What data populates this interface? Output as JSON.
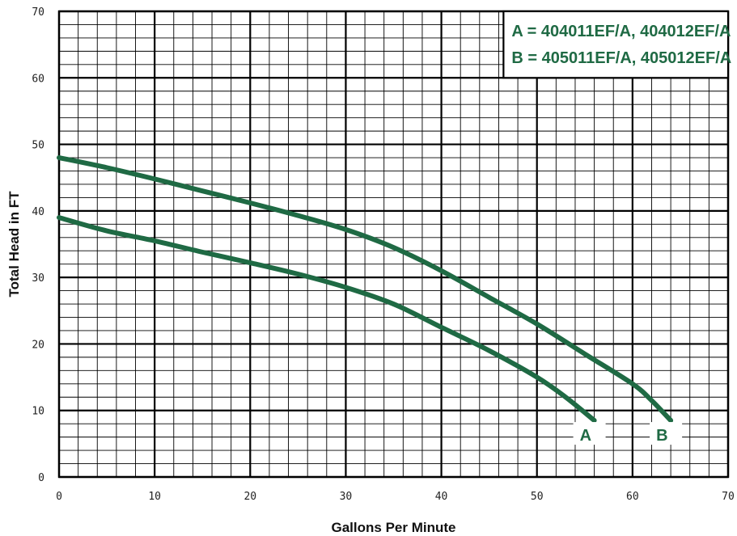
{
  "chart_data": {
    "type": "line",
    "xlabel": "Gallons Per Minute",
    "ylabel": "Total Head in FT",
    "xlim": [
      0,
      70
    ],
    "ylim": [
      0,
      70
    ],
    "x_ticks": [
      0,
      10,
      20,
      30,
      40,
      50,
      60,
      70
    ],
    "y_ticks": [
      0,
      10,
      20,
      30,
      40,
      50,
      60,
      70
    ],
    "grid": true,
    "legend_position": "top-right",
    "legend": [
      "A = 404011EF/A, 404012EF/A",
      "B = 405011EF/A, 405012EF/A"
    ],
    "line_color": "#1f6a44",
    "series": [
      {
        "name": "A",
        "x": [
          0,
          5,
          10,
          15,
          20,
          25,
          30,
          35,
          40,
          45,
          50,
          53,
          56
        ],
        "y": [
          39,
          37,
          35.5,
          33.8,
          32.2,
          30.5,
          28.5,
          26,
          22.5,
          19,
          15,
          12,
          8.5
        ]
      },
      {
        "name": "B",
        "x": [
          0,
          5,
          10,
          15,
          20,
          25,
          30,
          35,
          40,
          45,
          50,
          55,
          60,
          62,
          64
        ],
        "y": [
          48,
          46.5,
          44.8,
          43,
          41.2,
          39.3,
          37.2,
          34.5,
          31,
          27,
          23,
          18.5,
          14,
          11.5,
          8.5
        ]
      }
    ]
  }
}
